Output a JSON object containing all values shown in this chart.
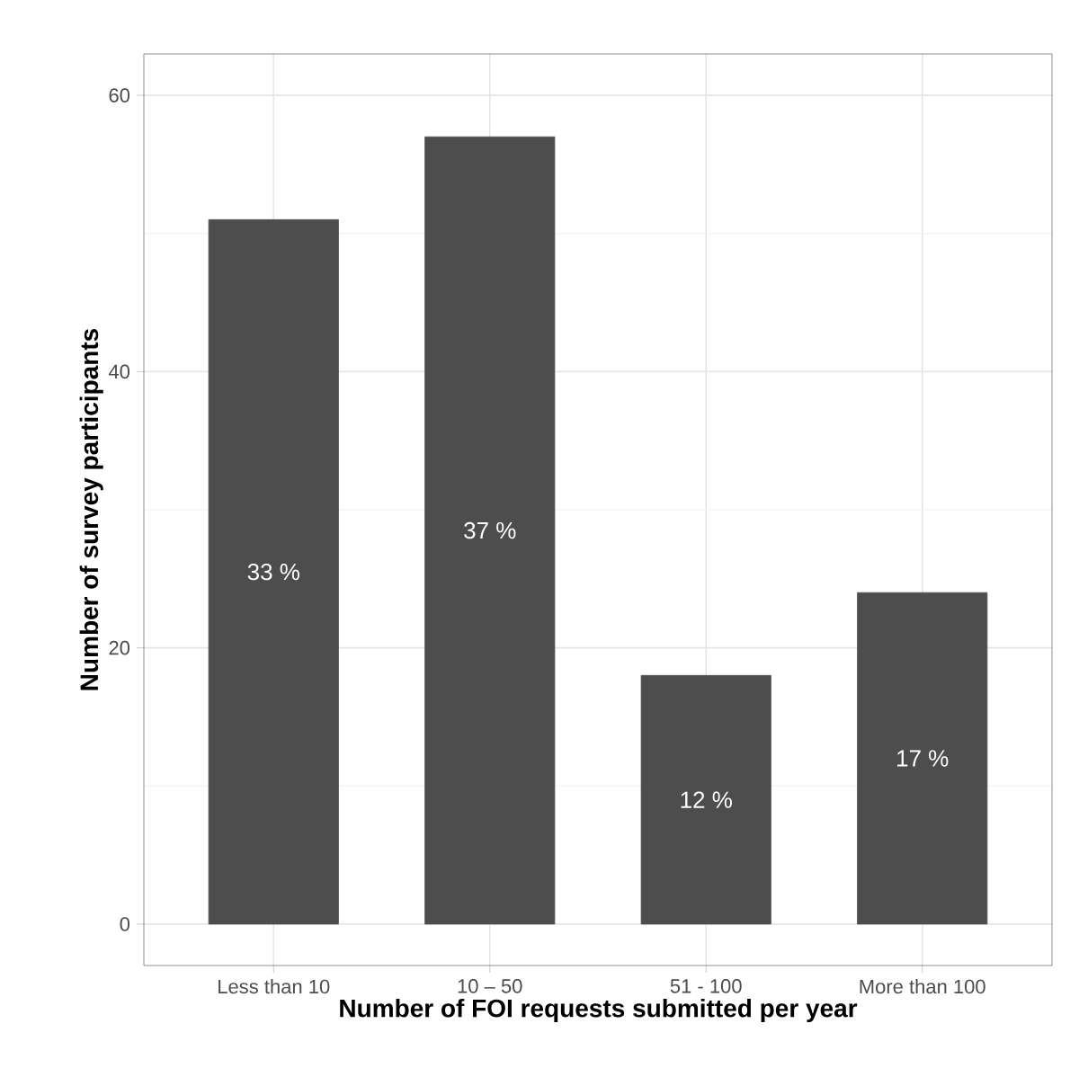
{
  "chart_data": {
    "type": "bar",
    "xlabel": "Number of FOI requests submitted per year",
    "ylabel": "Number of survey participants",
    "categories": [
      "Less than 10",
      "10 – 50",
      "51 - 100",
      "More than 100"
    ],
    "values": [
      51,
      57,
      18,
      24
    ],
    "annotations": [
      "33 %",
      "37 %",
      "12 %",
      "17 %"
    ],
    "color": "#4d4d4d",
    "ylim": [
      -3,
      63
    ],
    "yticks": [
      0,
      20,
      40,
      60
    ],
    "grid": true
  }
}
